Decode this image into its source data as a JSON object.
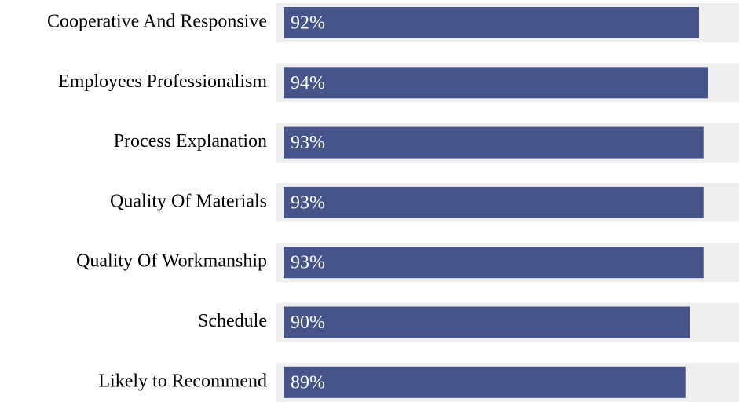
{
  "chart_data": {
    "type": "bar",
    "orientation": "horizontal",
    "categories": [
      "Cooperative And Responsive",
      "Employees Professionalism",
      "Process Explanation",
      "Quality Of Materials",
      "Quality Of Workmanship",
      "Schedule",
      "Likely to Recommend"
    ],
    "values": [
      92,
      94,
      93,
      93,
      93,
      90,
      89
    ],
    "value_labels": [
      "92%",
      "94%",
      "93%",
      "93%",
      "93%",
      "90%",
      "89%"
    ],
    "color": "#47548a",
    "track_color": "#efefef",
    "xlim": [
      0,
      100
    ]
  }
}
